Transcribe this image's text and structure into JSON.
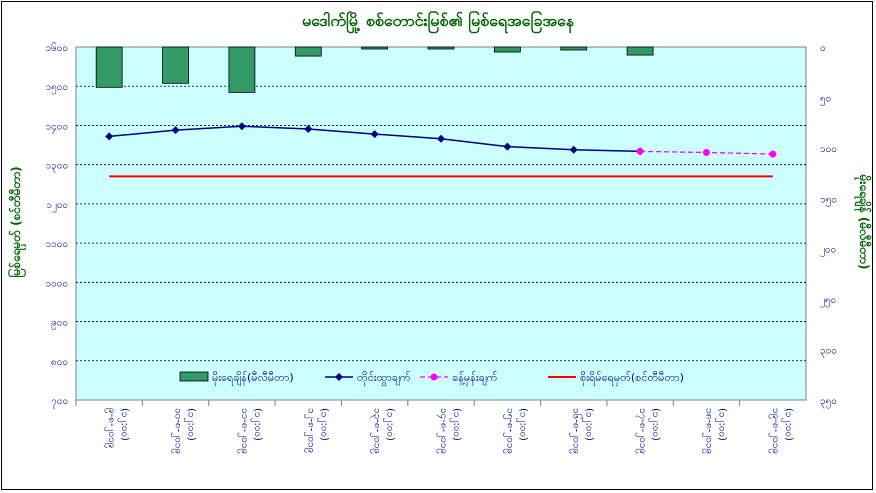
{
  "chart_data": {
    "type": "line",
    "title": "မဒေါက်မြို့ စစ်တောင်းမြစ်၏ မြစ်ရေအခြေအနေ",
    "ylabel_left": "မြစ်ရေမှတ် (စင်တီမီတာ)",
    "ylabel_right": "မိုးရေချိန် (မီလီမီတာ)",
    "left_axis": {
      "min": 700,
      "max": 1600,
      "ticks": [
        700,
        800,
        900,
        1000,
        1100,
        1200,
        1300,
        1400,
        1500,
        1600
      ],
      "tick_labels": [
        "၇၀၀",
        "၈၀၀",
        "၉၀၀",
        "၁၀၀၀",
        "၁၁၀၀",
        "၁၂၀၀",
        "၁၃၀၀",
        "၁၄၀၀",
        "၁၅၀၀",
        "၁၆၀၀"
      ]
    },
    "right_axis": {
      "min": 0,
      "max": 350,
      "reversed": true,
      "ticks": [
        0,
        50,
        100,
        150,
        200,
        250,
        300,
        350
      ],
      "tick_labels": [
        "၀",
        "၅၀",
        "၁၀၀",
        "၁၅၀",
        "၂၀၀",
        "၂၅၀",
        "၃၀၀",
        "၃၅၀"
      ]
    },
    "categories": [
      "၉-၈-၂၀၁၉ (၁၂:၀၀)",
      "၁၀-၈-၂၀၁၉ (၁၂:၀၀)",
      "၁၁-၈-၂၀၁၉ (၁၂:၀၀)",
      "၁၂-၈-၂၀၁၉ (၁၂:၀၀)",
      "၁၃-၈-၂၀၁၉ (၁၂:၀၀)",
      "၁၄-၈-၂၀၁၉ (၁၂:၀၀)",
      "၁၅-၈-၂၀၁၉ (၁၂:၀၀)",
      "၁၆-၈-၂၀၁၉ (၁၂:၀၀)",
      "၁၇-၈-၂၀၁၉ (၁၂:၀၀)",
      "၁၈-၈-၂၀၁၉ (၁၂:၀၀)",
      "၁၉-၈-၂၀၁၉ (၁၂:၀၀)"
    ],
    "series": [
      {
        "name": "မိုးရေချိန်(မီလီမီတာ)",
        "type": "bar",
        "axis": "right",
        "color": "#339966",
        "values": [
          40,
          36,
          45,
          9,
          2,
          2,
          5,
          3,
          8,
          null,
          null
        ]
      },
      {
        "name": "တိုင်းထွာချက်",
        "type": "line",
        "axis": "left",
        "color": "#000080",
        "values": [
          1372,
          1388,
          1398,
          1391,
          1378,
          1366,
          1346,
          1338,
          1334,
          null,
          null
        ]
      },
      {
        "name": "ခန့်မှန်းချက်",
        "type": "line",
        "axis": "left",
        "color": "#ff00ff",
        "dashed": true,
        "values": [
          null,
          null,
          null,
          null,
          null,
          null,
          null,
          null,
          1334,
          1331,
          1327
        ]
      },
      {
        "name": "စိုးရိမ်ရေမှတ်(စင်တီမီတာ)",
        "type": "hline",
        "axis": "left",
        "color": "#ff0000",
        "value": 1270
      }
    ],
    "grid": true,
    "legend": "bottom-center",
    "plot_background": "#ccffff"
  }
}
